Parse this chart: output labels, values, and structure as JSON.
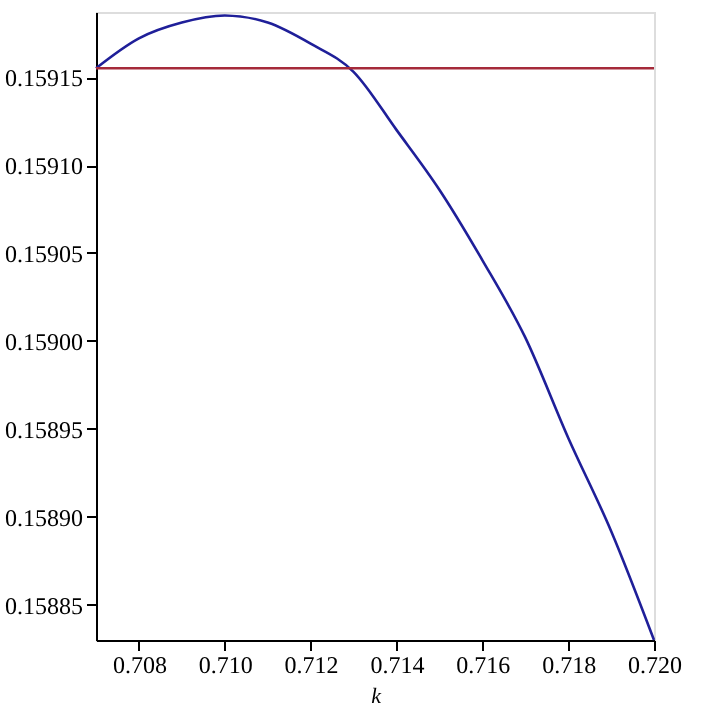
{
  "chart_data": {
    "type": "line",
    "xlabel": "k",
    "series": [
      {
        "color": "#1f1f99",
        "x": [
          0.707,
          0.708,
          0.709,
          0.71,
          0.711,
          0.712,
          0.713,
          0.714,
          0.715,
          0.716,
          0.717,
          0.718,
          0.719,
          0.72
        ],
        "values": [
          0.159155,
          0.159172,
          0.159181,
          0.159185,
          0.159181,
          0.159169,
          0.159153,
          0.15912,
          0.159086,
          0.159046,
          0.159002,
          0.158945,
          0.158892,
          0.15883
        ]
      },
      {
        "color": "#a52a3a",
        "x": [
          0.707,
          0.72
        ],
        "values": [
          0.159155,
          0.159155
        ]
      }
    ],
    "xlim": [
      0.707,
      0.72
    ],
    "xticks": [
      0.708,
      {
        "value": 0.71,
        "label": "0.710"
      },
      0.712,
      0.714,
      0.716,
      0.718,
      {
        "value": 0.72,
        "label": "0.720"
      }
    ],
    "ylim": [
      0.15883,
      0.159187
    ],
    "yticks": [
      0.15885,
      {
        "value": 0.1589,
        "label": "0.15890"
      },
      0.15895,
      {
        "value": 0.159,
        "label": "0.15900"
      },
      0.15905,
      {
        "value": 0.1591,
        "label": "0.15910"
      },
      0.15915
    ],
    "grid": false,
    "legend": false,
    "marker": "none",
    "line_style": "solid"
  }
}
